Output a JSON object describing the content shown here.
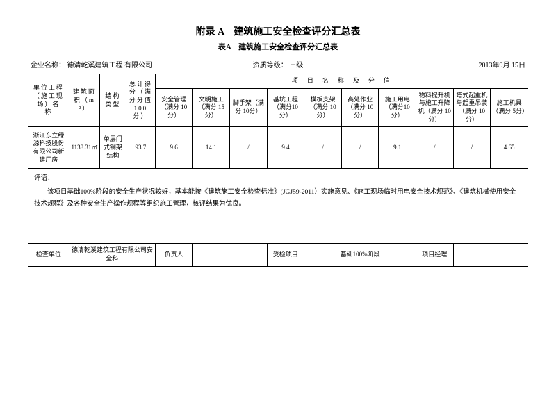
{
  "titles": {
    "main": "附录 A　建筑施工安全检查评分汇总表",
    "sub": "表A　建筑施工安全检查评分汇总表"
  },
  "header": {
    "company_label": "企业名称：",
    "company_value": "德清乾溪建筑工程  有限公司",
    "grade_label": "资质等级：",
    "grade_value": "三级",
    "date": "2013年9月 15日"
  },
  "table": {
    "cols": {
      "project": "单位工程（施工现场）名　称",
      "area": "建筑面积（m²）",
      "struct": "结构类型",
      "total": "总计得分（满分分值100 分）",
      "score_header": "项　目　名　称　及　分　值",
      "c1": "安全管理（满分 10分）",
      "c2": "文明施工（满分 15分）",
      "c3": "脚手架（满分 10分）",
      "c4": "基坑工程（满分10 分）",
      "c5": "模板支架（满分 10分）",
      "c6": "高处作业（满分 10分）",
      "c7": "施工用电（满分10分）",
      "c8": "物料提升机与施工升降机（满分 10分）",
      "c9": "塔式起重机与起重吊装（满分 10 分）",
      "c10": "施工机具（满分 5分）"
    },
    "row": {
      "project": "浙江东立绿源科技股份有限公司新建厂房",
      "area": "1138.31㎡",
      "struct": "单层门式钢架结构",
      "total": "93.7",
      "c1": "9.6",
      "c2": "14.1",
      "c3": "/",
      "c4": "9.4",
      "c5": "/",
      "c6": "/",
      "c7": "9.1",
      "c8": "/",
      "c9": "/",
      "c10": "4.65"
    },
    "remarks_label": "评语：",
    "remarks_body": "该项目基础100%阶段的安全生产状况较好，基本能按《建筑施工安全检查标准》(JGJ59-2011）实施意见、《施工现场临时用电安全技术规范》、《建筑机械使用安全技术规程》及各种安全生产操作规程等组织施工管理，核评结果为优良。",
    "footer": {
      "check_unit_label": "检查单位",
      "check_unit_value": "德清乾溪建筑工程有限公司安全科",
      "responsible_label": "负责人",
      "responsible_value": "",
      "inspected_label": "受检项目",
      "inspected_value": "基础100%阶段",
      "pm_label": "项目经理",
      "pm_value": ""
    }
  },
  "style": {
    "widths": {
      "project": "56",
      "area": "42",
      "struct": "36",
      "total": "40",
      "score": "51"
    }
  }
}
